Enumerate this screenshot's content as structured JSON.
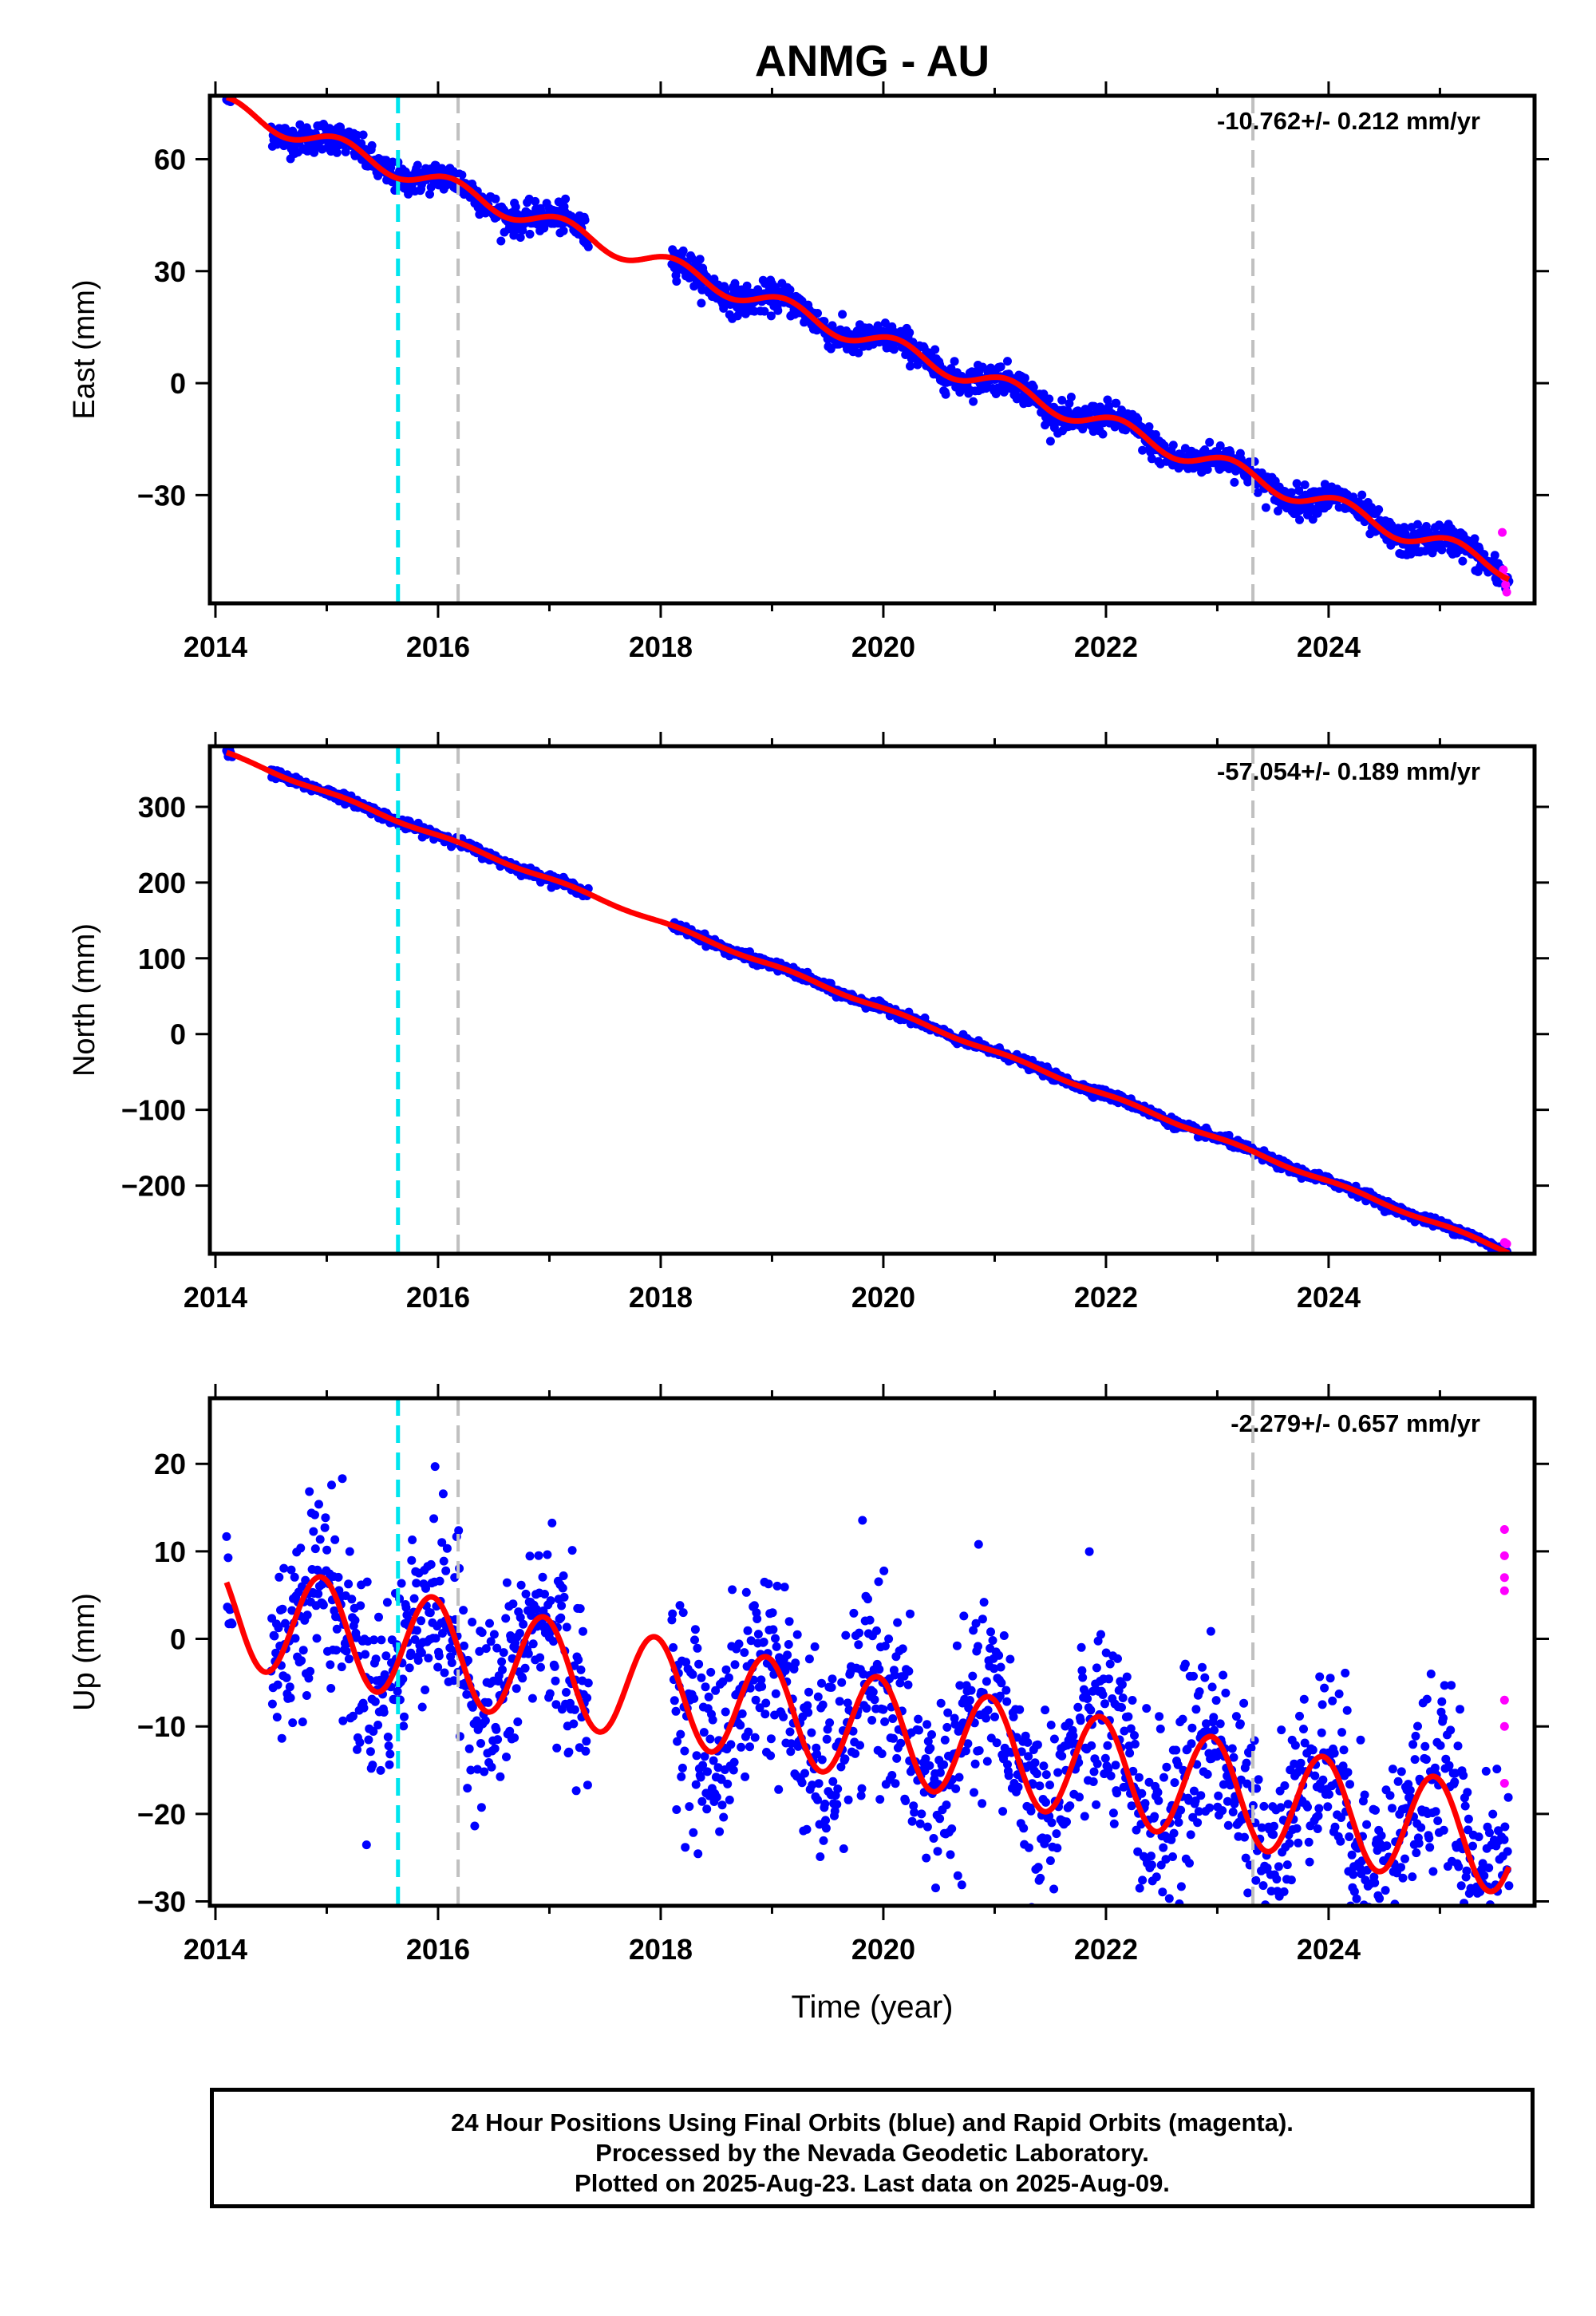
{
  "title": "ANMG - AU",
  "x_label": "Time (year)",
  "footer": {
    "line1": "24 Hour Positions Using Final Orbits (blue) and Rapid Orbits (magenta).",
    "line2": "Processed by the Nevada Geodetic Laboratory.",
    "line3": "Plotted on 2025-Aug-23. Last data on 2025-Aug-09."
  },
  "colors": {
    "final_orbits": "#0000ff",
    "rapid_orbits": "#ff00ff",
    "model_fit": "#ff0000",
    "offset_equipment": "#00e5ee",
    "offset_other": "#c0c0c0"
  },
  "chart_data": [
    {
      "type": "scatter",
      "ylabel": "East (mm)",
      "rate": "-10.762+/- 0.212 mm/yr",
      "xlim": [
        2013.95,
        2025.85
      ],
      "ylim": [
        -59,
        77
      ],
      "xticks": [
        2014,
        2016,
        2018,
        2020,
        2022,
        2024
      ],
      "yticks": [
        60,
        30,
        0,
        -30
      ],
      "ytick_labels": [
        "60",
        "30",
        "0",
        "−30"
      ],
      "vlines": [
        {
          "x": 2015.64,
          "color": "cyan"
        },
        {
          "x": 2016.18,
          "color": "gray"
        },
        {
          "x": 2023.32,
          "color": "gray"
        }
      ],
      "fit": {
        "start": [
          2014.1,
          74
        ],
        "slope": -10.762,
        "seasonal_amp": 2.6,
        "phase": 0.8,
        "year_offset": 0
      },
      "data_segments": [
        [
          2014.1,
          2014.15
        ],
        [
          2014.5,
          2017.35
        ],
        [
          2018.1,
          2025.62
        ]
      ],
      "scatter_noise": 2.0,
      "rapid_points": [
        [
          2025.56,
          -40
        ],
        [
          2025.57,
          -50
        ],
        [
          2025.58,
          -52
        ],
        [
          2025.59,
          -54
        ],
        [
          2025.6,
          -56
        ]
      ]
    },
    {
      "type": "scatter",
      "ylabel": "North (mm)",
      "rate": "-57.054+/- 0.189 mm/yr",
      "xlim": [
        2013.95,
        2025.85
      ],
      "ylim": [
        -290,
        380
      ],
      "xticks": [
        2014,
        2016,
        2018,
        2020,
        2022,
        2024
      ],
      "yticks": [
        300,
        200,
        100,
        0,
        -100,
        -200
      ],
      "ytick_labels": [
        "300",
        "200",
        "100",
        "0",
        "−100",
        "−200"
      ],
      "vlines": [
        {
          "x": 2015.64,
          "color": "cyan"
        },
        {
          "x": 2016.18,
          "color": "gray"
        },
        {
          "x": 2023.32,
          "color": "gray"
        }
      ],
      "fit": {
        "start": [
          2014.1,
          370
        ],
        "slope": -57.054,
        "seasonal_amp": 2.0,
        "phase": 0.5,
        "year_offset": 0
      },
      "data_segments": [
        [
          2014.1,
          2014.15
        ],
        [
          2014.5,
          2017.35
        ],
        [
          2018.1,
          2025.62
        ]
      ],
      "scatter_noise": 3.0,
      "rapid_points": [
        [
          2025.58,
          -275
        ],
        [
          2025.6,
          -277
        ]
      ]
    },
    {
      "type": "scatter",
      "ylabel": "Up (mm)",
      "rate": "-2.279+/- 0.657 mm/yr",
      "xlim": [
        2013.95,
        2025.85
      ],
      "ylim": [
        -30.5,
        27.5
      ],
      "xticks": [
        2014,
        2016,
        2018,
        2020,
        2022,
        2024
      ],
      "yticks": [
        20,
        10,
        0,
        -10,
        -20,
        -30
      ],
      "ytick_labels": [
        "20",
        "10",
        "0",
        "−10",
        "−20",
        "−30"
      ],
      "vlines": [
        {
          "x": 2015.64,
          "color": "cyan"
        },
        {
          "x": 2016.18,
          "color": "gray"
        },
        {
          "x": 2023.32,
          "color": "gray"
        }
      ],
      "fit": {
        "start": [
          2014.1,
          3
        ],
        "slope": -2.279,
        "seasonal_amp": 6.0,
        "phase": 1.9,
        "year_offset": 0
      },
      "data_segments": [
        [
          2014.1,
          2014.15
        ],
        [
          2014.5,
          2017.35
        ],
        [
          2018.1,
          2025.62
        ]
      ],
      "scatter_noise": 5.5,
      "rapid_points": [
        [
          2025.58,
          12.5
        ],
        [
          2025.58,
          9.5
        ],
        [
          2025.58,
          7
        ],
        [
          2025.58,
          5.5
        ],
        [
          2025.58,
          -7
        ],
        [
          2025.58,
          -10
        ],
        [
          2025.58,
          -16.5
        ]
      ]
    }
  ]
}
